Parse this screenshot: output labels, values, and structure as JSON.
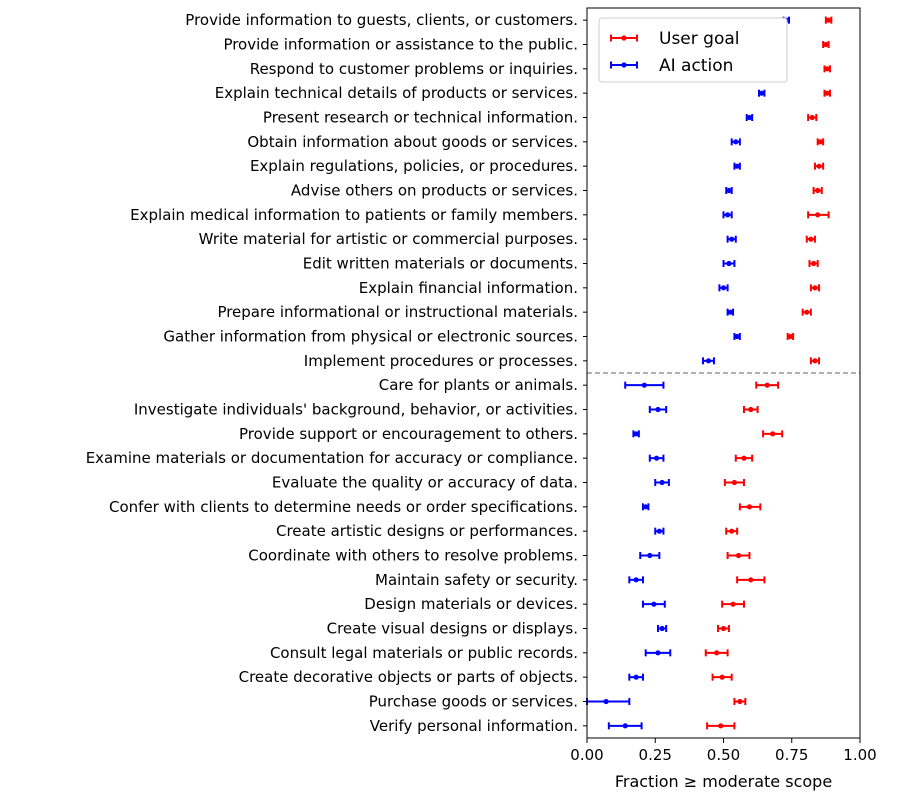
{
  "chart_data": {
    "type": "scatter",
    "xlabel": "Fraction ≥ moderate scope",
    "xlim": [
      0,
      1
    ],
    "xticks": [
      0,
      0.25,
      0.5,
      0.75,
      1
    ],
    "xtick_labels": [
      "0.00",
      "0.25",
      "0.50",
      "0.75",
      "1.00"
    ],
    "legend_position": "top-left",
    "divider_after_index": 14,
    "categories": [
      "Provide information to guests, clients, or customers.",
      "Provide information or assistance to the public.",
      "Respond to customer problems or inquiries.",
      "Explain technical details of products or services.",
      "Present research or technical information.",
      "Obtain information about goods or services.",
      "Explain regulations, policies, or procedures.",
      "Advise others on products or services.",
      "Explain medical information to patients or family members.",
      "Write material for artistic or commercial purposes.",
      "Edit written materials or documents.",
      "Explain financial information.",
      "Prepare informational or instructional materials.",
      "Gather information from physical or electronic sources.",
      "Implement procedures or processes.",
      "Care for plants or animals.",
      "Investigate individuals' background, behavior, or activities.",
      "Provide support or encouragement to others.",
      "Examine materials or documentation for accuracy or compliance.",
      "Evaluate the quality or accuracy of data.",
      "Confer with clients to determine needs or order specifications.",
      "Create artistic designs or performances.",
      "Coordinate with others to resolve problems.",
      "Maintain safety or security.",
      "Design materials or devices.",
      "Create visual designs or displays.",
      "Consult legal materials or public records.",
      "Create decorative objects or parts of objects.",
      "Purchase goods or services.",
      "Verify personal information."
    ],
    "series": [
      {
        "name": "User goal",
        "color": "#ff0000",
        "values": [
          0.885,
          0.875,
          0.88,
          0.88,
          0.825,
          0.855,
          0.85,
          0.845,
          0.845,
          0.82,
          0.83,
          0.835,
          0.805,
          0.745,
          0.835,
          0.66,
          0.6,
          0.68,
          0.575,
          0.54,
          0.595,
          0.53,
          0.555,
          0.6,
          0.535,
          0.5,
          0.475,
          0.495,
          0.56,
          0.49
        ],
        "lower": [
          0.875,
          0.865,
          0.87,
          0.87,
          0.81,
          0.845,
          0.835,
          0.83,
          0.81,
          0.805,
          0.815,
          0.82,
          0.79,
          0.735,
          0.82,
          0.62,
          0.575,
          0.645,
          0.545,
          0.505,
          0.56,
          0.51,
          0.515,
          0.55,
          0.495,
          0.48,
          0.435,
          0.46,
          0.54,
          0.44
        ],
        "upper": [
          0.895,
          0.885,
          0.89,
          0.89,
          0.84,
          0.865,
          0.865,
          0.86,
          0.885,
          0.835,
          0.845,
          0.85,
          0.82,
          0.755,
          0.85,
          0.7,
          0.625,
          0.715,
          0.605,
          0.575,
          0.635,
          0.55,
          0.595,
          0.65,
          0.575,
          0.52,
          0.515,
          0.53,
          0.58,
          0.54
        ]
      },
      {
        "name": "AI action",
        "color": "#0000ff",
        "values": [
          0.73,
          0.705,
          0.695,
          0.64,
          0.595,
          0.545,
          0.55,
          0.52,
          0.515,
          0.53,
          0.52,
          0.5,
          0.525,
          0.55,
          0.445,
          0.21,
          0.26,
          0.18,
          0.255,
          0.275,
          0.215,
          0.265,
          0.23,
          0.18,
          0.245,
          0.275,
          0.26,
          0.18,
          0.07,
          0.14
        ],
        "lower": [
          0.72,
          0.695,
          0.685,
          0.63,
          0.585,
          0.53,
          0.54,
          0.51,
          0.5,
          0.515,
          0.5,
          0.485,
          0.515,
          0.54,
          0.425,
          0.14,
          0.23,
          0.17,
          0.23,
          0.25,
          0.205,
          0.25,
          0.195,
          0.155,
          0.205,
          0.26,
          0.215,
          0.155,
          0.0,
          0.08
        ],
        "upper": [
          0.74,
          0.715,
          0.705,
          0.65,
          0.605,
          0.56,
          0.56,
          0.53,
          0.53,
          0.545,
          0.54,
          0.515,
          0.535,
          0.56,
          0.465,
          0.28,
          0.29,
          0.19,
          0.28,
          0.3,
          0.225,
          0.28,
          0.265,
          0.205,
          0.285,
          0.29,
          0.305,
          0.205,
          0.155,
          0.2
        ]
      }
    ]
  }
}
